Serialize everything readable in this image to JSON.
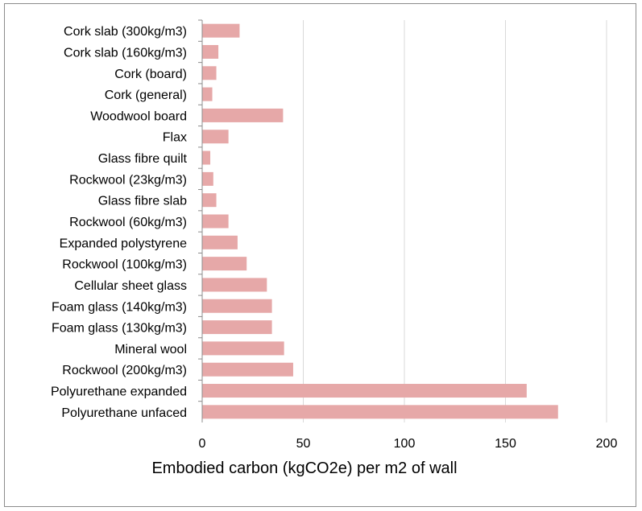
{
  "chart_data": {
    "type": "bar",
    "orientation": "horizontal",
    "categories": [
      "Cork slab (300kg/m3)",
      "Cork slab (160kg/m3)",
      "Cork (board)",
      "Cork (general)",
      "Woodwool board",
      "Flax",
      "Glass fibre quilt",
      "Rockwool (23kg/m3)",
      "Glass fibre slab",
      "Rockwool (60kg/m3)",
      "Expanded polystyrene",
      "Rockwool (100kg/m3)",
      "Cellular sheet glass",
      "Foam glass (140kg/m3)",
      "Foam glass (130kg/m3)",
      "Mineral wool",
      "Rockwool (200kg/m3)",
      "Polyurethane expanded",
      "Polyurethane unfaced"
    ],
    "values": [
      18.5,
      8,
      7,
      5,
      40,
      13,
      4,
      5.5,
      7,
      13,
      17.5,
      22,
      32,
      34.5,
      34.5,
      40.5,
      45,
      160.5,
      176
    ],
    "xlabel": "Embodied carbon (kgCO2e) per m2 of wall",
    "xlim": [
      0,
      200
    ],
    "xticks": [
      0,
      50,
      100,
      150,
      200
    ],
    "grid": true,
    "bar_color": "#e6a8a8",
    "grid_color": "#d9d9d9",
    "axis_color": "#8c8c8c"
  }
}
